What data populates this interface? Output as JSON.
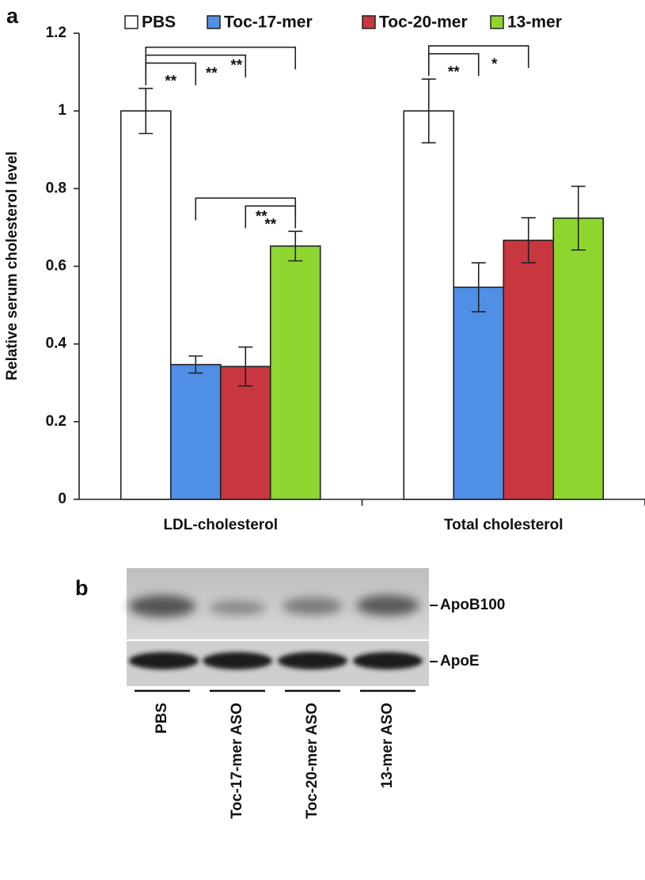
{
  "chart_data": {
    "type": "bar",
    "panel_label": "a",
    "y_label": "Relative serum cholesterol level",
    "categories": [
      "LDL-cholesterol",
      "Total cholesterol"
    ],
    "series": [
      {
        "name": "PBS",
        "color": "#ffffff",
        "values": [
          1.0,
          1.0
        ],
        "errors": [
          0.058,
          0.082
        ]
      },
      {
        "name": "Toc-17-mer",
        "color": "#4f8fe6",
        "values": [
          0.347,
          0.546
        ],
        "errors": [
          0.022,
          0.063
        ]
      },
      {
        "name": "Toc-20-mer",
        "color": "#c8363f",
        "values": [
          0.342,
          0.667
        ],
        "errors": [
          0.05,
          0.058
        ]
      },
      {
        "name": "13-mer",
        "color": "#8ed62f",
        "values": [
          0.652,
          0.724
        ],
        "errors": [
          0.038,
          0.082
        ]
      }
    ],
    "ylim": [
      0,
      1.2
    ],
    "yticks": [
      0,
      0.2,
      0.4,
      0.6,
      0.8,
      1,
      1.2
    ],
    "significance": [
      {
        "category": 0,
        "pair": [
          0,
          1
        ],
        "label": "**"
      },
      {
        "category": 0,
        "pair": [
          0,
          2
        ],
        "label": "**"
      },
      {
        "category": 0,
        "pair": [
          0,
          3
        ],
        "label": "**"
      },
      {
        "category": 0,
        "pair": [
          1,
          3
        ],
        "label": "**"
      },
      {
        "category": 0,
        "pair": [
          2,
          3
        ],
        "label": "**"
      },
      {
        "category": 1,
        "pair": [
          0,
          1
        ],
        "label": "**"
      },
      {
        "category": 1,
        "pair": [
          0,
          2
        ],
        "label": "*"
      }
    ]
  },
  "blot": {
    "panel_label": "b",
    "bands": [
      "ApoB100",
      "ApoE"
    ],
    "lanes": [
      "PBS",
      "Toc-17-mer ASO",
      "Toc-20-mer ASO",
      "13-mer ASO"
    ]
  }
}
